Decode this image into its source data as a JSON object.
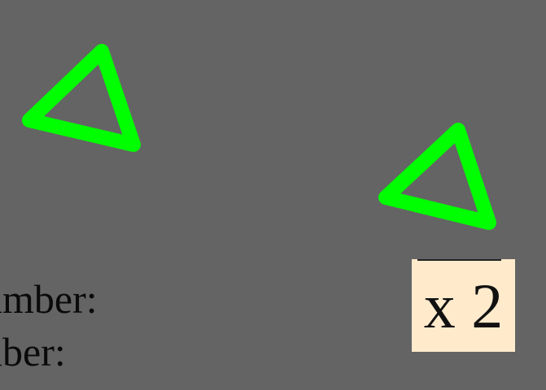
{
  "scene": {
    "background_color": "#646464",
    "accent_color": "#00ff00",
    "shapes": [
      {
        "name": "triangle-left-icon",
        "kind": "hand-drawn-triangle",
        "stroke": "#00ff00"
      },
      {
        "name": "triangle-right-icon",
        "kind": "hand-drawn-triangle",
        "stroke": "#00ff00"
      }
    ],
    "text_lines": [
      "umber:",
      "nber:"
    ],
    "multiplier_label": "x 2",
    "multiplier_box_color": "#ffeacc"
  }
}
